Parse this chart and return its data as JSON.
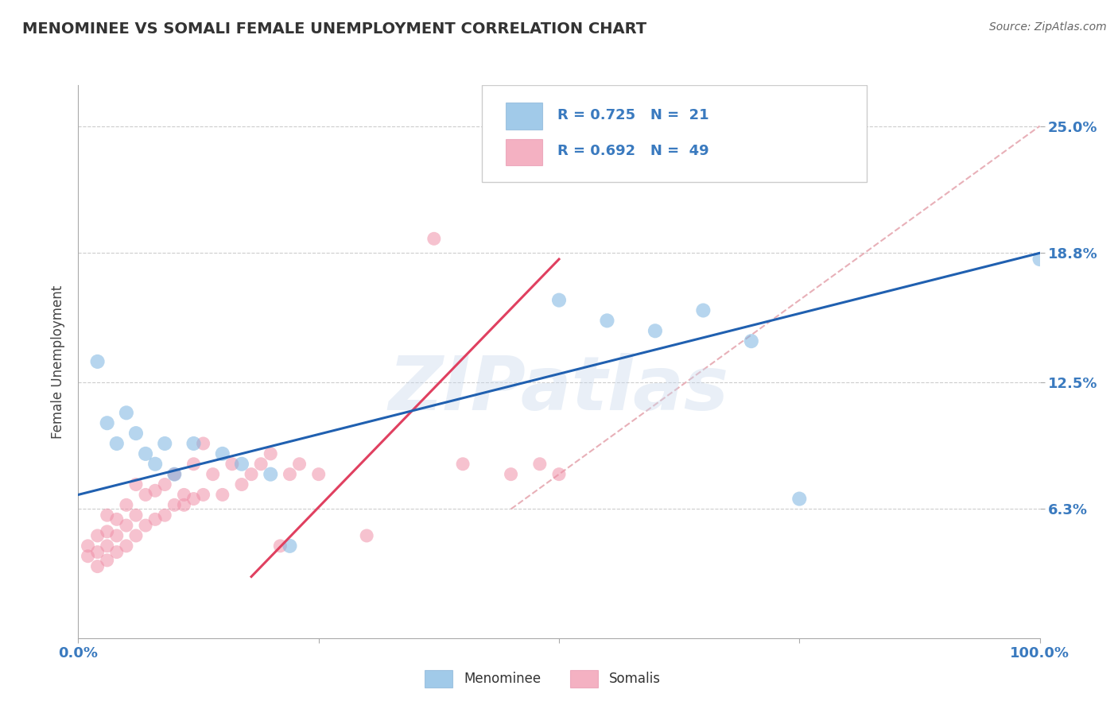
{
  "title": "MENOMINEE VS SOMALI FEMALE UNEMPLOYMENT CORRELATION CHART",
  "source": "Source: ZipAtlas.com",
  "ylabel": "Female Unemployment",
  "xlim": [
    0,
    100
  ],
  "ylim": [
    0,
    27
  ],
  "yticks": [
    6.3,
    12.5,
    18.8,
    25.0
  ],
  "xticks": [
    0,
    25,
    50,
    75,
    100
  ],
  "xtick_labels": [
    "0.0%",
    "",
    "",
    "",
    "100.0%"
  ],
  "ytick_labels": [
    "6.3%",
    "12.5%",
    "18.8%",
    "25.0%"
  ],
  "legend_items": [
    {
      "label": "R = 0.725   N =  21",
      "color": "#a8c8ea"
    },
    {
      "label": "R = 0.692   N =  49",
      "color": "#f4b0c0"
    }
  ],
  "legend_bottom": [
    "Menominee",
    "Somalis"
  ],
  "background_color": "#ffffff",
  "watermark": "ZIPatlas",
  "menominee_color": "#7ab4e0",
  "somali_color": "#f090a8",
  "menominee_line_color": "#2060b0",
  "somali_line_color": "#e04060",
  "ref_line_color": "#e8b0b8",
  "menominee_points": [
    [
      2,
      13.5
    ],
    [
      3,
      10.5
    ],
    [
      4,
      9.5
    ],
    [
      5,
      11.0
    ],
    [
      6,
      10.0
    ],
    [
      7,
      9.0
    ],
    [
      8,
      8.5
    ],
    [
      9,
      9.5
    ],
    [
      10,
      8.0
    ],
    [
      12,
      9.5
    ],
    [
      15,
      9.0
    ],
    [
      17,
      8.5
    ],
    [
      20,
      8.0
    ],
    [
      22,
      4.5
    ],
    [
      50,
      16.5
    ],
    [
      55,
      15.5
    ],
    [
      60,
      15.0
    ],
    [
      65,
      16.0
    ],
    [
      70,
      14.5
    ],
    [
      75,
      6.8
    ],
    [
      100,
      18.5
    ]
  ],
  "somali_points": [
    [
      1,
      4.0
    ],
    [
      1,
      4.5
    ],
    [
      2,
      3.5
    ],
    [
      2,
      4.2
    ],
    [
      2,
      5.0
    ],
    [
      3,
      3.8
    ],
    [
      3,
      4.5
    ],
    [
      3,
      5.2
    ],
    [
      3,
      6.0
    ],
    [
      4,
      4.2
    ],
    [
      4,
      5.0
    ],
    [
      4,
      5.8
    ],
    [
      5,
      4.5
    ],
    [
      5,
      5.5
    ],
    [
      5,
      6.5
    ],
    [
      6,
      5.0
    ],
    [
      6,
      6.0
    ],
    [
      6,
      7.5
    ],
    [
      7,
      5.5
    ],
    [
      7,
      7.0
    ],
    [
      8,
      5.8
    ],
    [
      8,
      7.2
    ],
    [
      9,
      6.0
    ],
    [
      9,
      7.5
    ],
    [
      10,
      6.5
    ],
    [
      10,
      8.0
    ],
    [
      11,
      6.5
    ],
    [
      11,
      7.0
    ],
    [
      12,
      6.8
    ],
    [
      12,
      8.5
    ],
    [
      13,
      7.0
    ],
    [
      13,
      9.5
    ],
    [
      14,
      8.0
    ],
    [
      15,
      7.0
    ],
    [
      16,
      8.5
    ],
    [
      17,
      7.5
    ],
    [
      18,
      8.0
    ],
    [
      19,
      8.5
    ],
    [
      20,
      9.0
    ],
    [
      21,
      4.5
    ],
    [
      22,
      8.0
    ],
    [
      23,
      8.5
    ],
    [
      25,
      8.0
    ],
    [
      30,
      5.0
    ],
    [
      37,
      19.5
    ],
    [
      40,
      8.5
    ],
    [
      45,
      8.0
    ],
    [
      48,
      8.5
    ],
    [
      50,
      8.0
    ]
  ],
  "menominee_line": {
    "x0": 0,
    "x1": 100,
    "y0": 7.0,
    "y1": 18.8
  },
  "somali_line": {
    "x0": 18,
    "x1": 50,
    "y0": 3.0,
    "y1": 18.5
  },
  "ref_line": {
    "x0": 45,
    "x1": 100,
    "y0": 6.3,
    "y1": 25.0
  }
}
